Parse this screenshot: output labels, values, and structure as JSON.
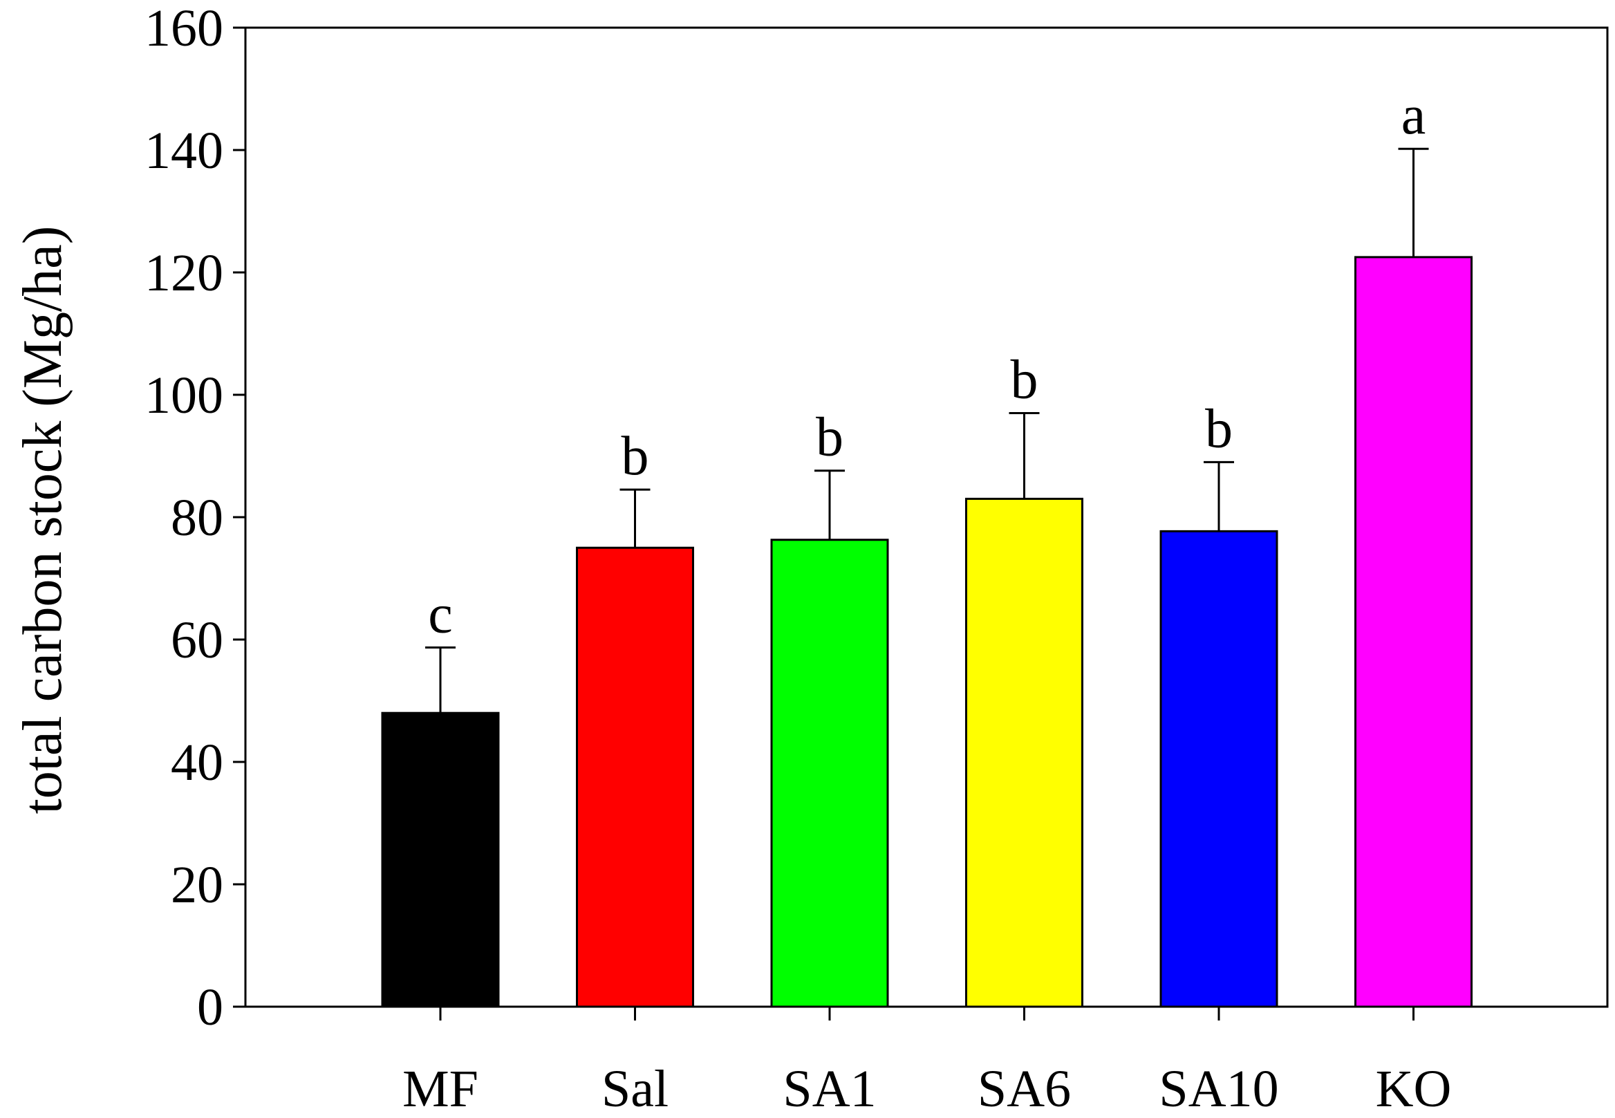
{
  "chart_data": {
    "type": "bar",
    "title": "",
    "xlabel": "",
    "ylabel": "total carbon stock (Mg/ha)",
    "ylim": [
      0,
      160
    ],
    "yticks": [
      0,
      20,
      40,
      60,
      80,
      100,
      120,
      140,
      160
    ],
    "grid": false,
    "categories": [
      "MF",
      "Sal",
      "SA1",
      "SA6",
      "SA10",
      "KO"
    ],
    "values": [
      48,
      75,
      76.3,
      83,
      77.7,
      122.5
    ],
    "errors": [
      10.7,
      9.5,
      11.3,
      14,
      11.3,
      17.7
    ],
    "significance": [
      "c",
      "b",
      "b",
      "b",
      "b",
      "a"
    ],
    "colors": [
      "#000000",
      "#ff0000",
      "#00ff00",
      "#ffff00",
      "#0000ff",
      "#ff00ff"
    ]
  }
}
